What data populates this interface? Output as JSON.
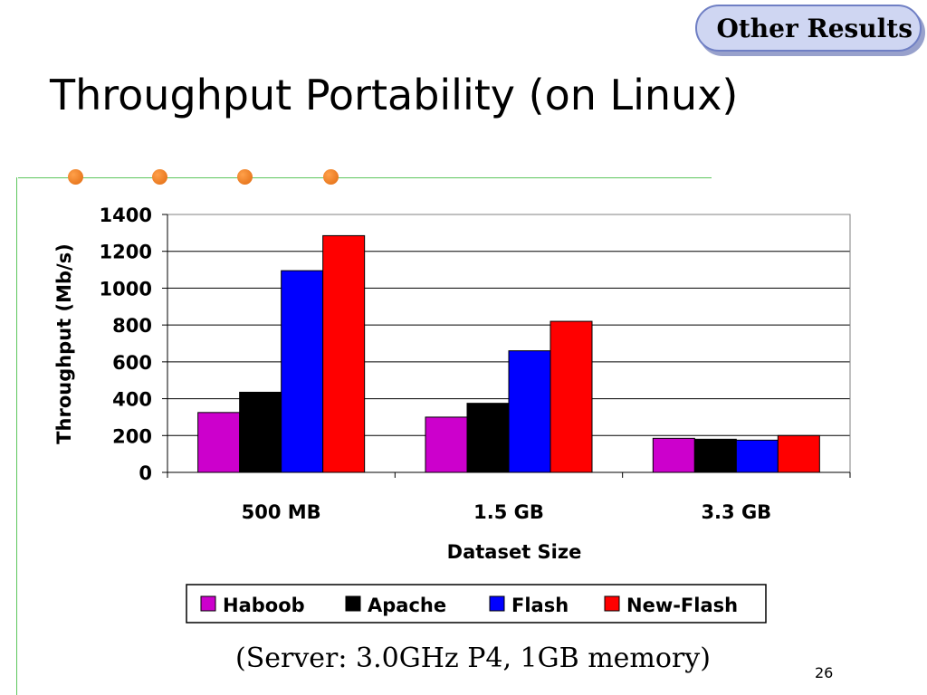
{
  "badge": {
    "label": "Other Results"
  },
  "slide": {
    "title": "Throughput Portability (on Linux)",
    "caption": "(Server: 3.0GHz P4, 1GB memory)",
    "page_number": "26"
  },
  "colors": {
    "accent_line": "#5cc65c",
    "bullet_dot": "#e9782a",
    "badge_fill": "#cfd6f2"
  },
  "chart_data": {
    "type": "bar",
    "title": "",
    "xlabel": "Dataset Size",
    "ylabel": "Throughput (Mb/s)",
    "ylim": [
      0,
      1400
    ],
    "yticks": [
      0,
      200,
      400,
      600,
      800,
      1000,
      1200,
      1400
    ],
    "categories": [
      "500 MB",
      "1.5 GB",
      "3.3 GB"
    ],
    "grid": true,
    "legend_position": "bottom",
    "series": [
      {
        "name": "Haboob",
        "color": "#cc00cc",
        "values": [
          325,
          300,
          185
        ]
      },
      {
        "name": "Apache",
        "color": "#000000",
        "values": [
          435,
          375,
          180
        ]
      },
      {
        "name": "Flash",
        "color": "#0000ff",
        "values": [
          1095,
          660,
          175
        ]
      },
      {
        "name": "New-Flash",
        "color": "#ff0000",
        "values": [
          1285,
          820,
          200
        ]
      }
    ]
  }
}
